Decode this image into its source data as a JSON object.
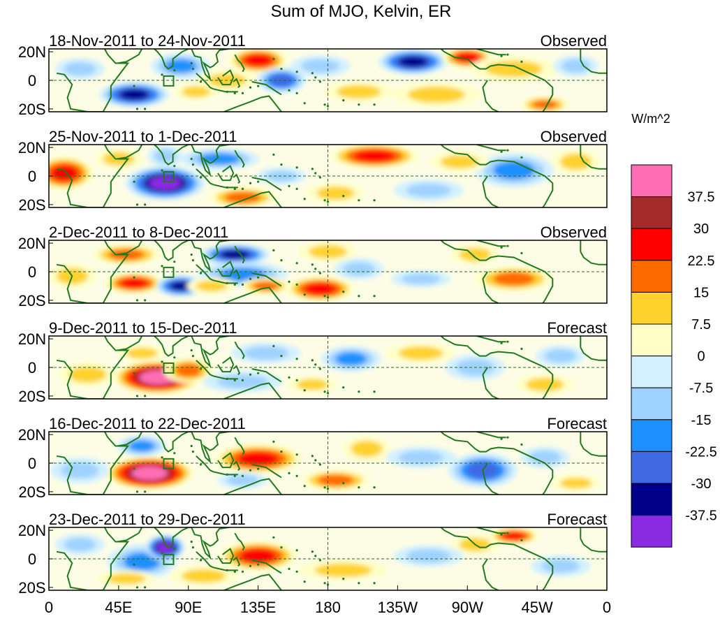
{
  "chart_data": {
    "type": "heatmap",
    "title": "Sum of MJO, Kelvin, ER",
    "units": "W/m^2",
    "x_ticks": [
      "0",
      "45E",
      "90E",
      "135E",
      "180",
      "135W",
      "90W",
      "45W",
      "0"
    ],
    "y_ticks": [
      "20N",
      "0",
      "20S"
    ],
    "colorbar": {
      "ticks": [
        "37.5",
        "30",
        "22.5",
        "15",
        "7.5",
        "0",
        "-7.5",
        "-15",
        "-22.5",
        "-30",
        "-37.5"
      ],
      "colors": [
        "#ff6eb4",
        "#a52a2a",
        "#ff0000",
        "#ff6a00",
        "#ffd22e",
        "#ffffc8",
        "#d2f0ff",
        "#a0d2ff",
        "#1e90ff",
        "#4169e1",
        "#00008b",
        "#8a2be2"
      ]
    },
    "panels": [
      {
        "period": "18-Nov-2011 to 24-Nov-2011",
        "status": "Observed",
        "anomalies": [
          {
            "lon": 20,
            "lat": 8,
            "rx": 10,
            "ry": 5,
            "value": -12
          },
          {
            "lon": 55,
            "lat": -10,
            "rx": 14,
            "ry": 6,
            "value": -35
          },
          {
            "lon": 85,
            "lat": 10,
            "rx": 12,
            "ry": 6,
            "value": -18
          },
          {
            "lon": 95,
            "lat": -8,
            "rx": 9,
            "ry": 4,
            "value": 10
          },
          {
            "lon": 135,
            "lat": 14,
            "rx": 12,
            "ry": 6,
            "value": 24
          },
          {
            "lon": 150,
            "lat": 0,
            "rx": 10,
            "ry": 6,
            "value": -30
          },
          {
            "lon": 115,
            "lat": 0,
            "rx": 12,
            "ry": 5,
            "value": 8
          },
          {
            "lon": 235,
            "lat": 13,
            "rx": 14,
            "ry": 6,
            "value": -36
          },
          {
            "lon": 270,
            "lat": 16,
            "rx": 10,
            "ry": 5,
            "value": 23
          },
          {
            "lon": 300,
            "lat": 8,
            "rx": 18,
            "ry": 6,
            "value": 14
          },
          {
            "lon": 340,
            "lat": 10,
            "rx": 9,
            "ry": 5,
            "value": -12
          },
          {
            "lon": 250,
            "lat": -10,
            "rx": 18,
            "ry": 6,
            "value": 8
          },
          {
            "lon": 320,
            "lat": -17,
            "rx": 10,
            "ry": 4,
            "value": 20
          },
          {
            "lon": 200,
            "lat": -8,
            "rx": 14,
            "ry": 5,
            "value": 9
          },
          {
            "lon": 175,
            "lat": 10,
            "rx": 12,
            "ry": 5,
            "value": -9
          }
        ]
      },
      {
        "period": "25-Nov-2011 to 1-Dec-2011",
        "status": "Observed",
        "anomalies": [
          {
            "lon": 10,
            "lat": 2,
            "rx": 12,
            "ry": 8,
            "value": 24
          },
          {
            "lon": 45,
            "lat": 12,
            "rx": 10,
            "ry": 5,
            "value": 10
          },
          {
            "lon": 75,
            "lat": -5,
            "rx": 16,
            "ry": 8,
            "value": -38
          },
          {
            "lon": 75,
            "lat": 14,
            "rx": 7,
            "ry": 5,
            "value": -15
          },
          {
            "lon": 110,
            "lat": 12,
            "rx": 16,
            "ry": 5,
            "value": -16
          },
          {
            "lon": 125,
            "lat": -15,
            "rx": 14,
            "ry": 5,
            "value": 20
          },
          {
            "lon": 150,
            "lat": 0,
            "rx": 10,
            "ry": 4,
            "value": -9
          },
          {
            "lon": 210,
            "lat": 14,
            "rx": 18,
            "ry": 6,
            "value": 24
          },
          {
            "lon": 185,
            "lat": -12,
            "rx": 12,
            "ry": 5,
            "value": 10
          },
          {
            "lon": 300,
            "lat": 4,
            "rx": 16,
            "ry": 8,
            "value": -16
          },
          {
            "lon": 340,
            "lat": 10,
            "rx": 10,
            "ry": 6,
            "value": 10
          },
          {
            "lon": 265,
            "lat": 10,
            "rx": 12,
            "ry": 5,
            "value": 8
          },
          {
            "lon": 245,
            "lat": -10,
            "rx": 14,
            "ry": 5,
            "value": -9
          }
        ]
      },
      {
        "period": "2-Dec-2011 to 8-Dec-2011",
        "status": "Observed",
        "anomalies": [
          {
            "lon": 50,
            "lat": 12,
            "rx": 14,
            "ry": 5,
            "value": 18
          },
          {
            "lon": 55,
            "lat": -8,
            "rx": 12,
            "ry": 5,
            "value": 23
          },
          {
            "lon": 85,
            "lat": -10,
            "rx": 10,
            "ry": 5,
            "value": -33
          },
          {
            "lon": 120,
            "lat": 12,
            "rx": 14,
            "ry": 5,
            "value": -33
          },
          {
            "lon": 125,
            "lat": -2,
            "rx": 18,
            "ry": 6,
            "value": -16
          },
          {
            "lon": 105,
            "lat": -10,
            "rx": 10,
            "ry": 4,
            "value": 10
          },
          {
            "lon": 140,
            "lat": -10,
            "rx": 10,
            "ry": 4,
            "value": 18
          },
          {
            "lon": 175,
            "lat": -12,
            "rx": 14,
            "ry": 6,
            "value": 24
          },
          {
            "lon": 180,
            "lat": 14,
            "rx": 12,
            "ry": 5,
            "value": 10
          },
          {
            "lon": 200,
            "lat": 2,
            "rx": 10,
            "ry": 5,
            "value": -9
          },
          {
            "lon": 300,
            "lat": -5,
            "rx": 16,
            "ry": 6,
            "value": 18
          },
          {
            "lon": 275,
            "lat": 12,
            "rx": 10,
            "ry": 5,
            "value": 10
          },
          {
            "lon": 15,
            "lat": -3,
            "rx": 10,
            "ry": 6,
            "value": 12
          },
          {
            "lon": 240,
            "lat": -5,
            "rx": 12,
            "ry": 4,
            "value": -8
          }
        ]
      },
      {
        "period": "9-Dec-2011 to 15-Dec-2011",
        "status": "Forecast",
        "anomalies": [
          {
            "lon": 70,
            "lat": -7,
            "rx": 18,
            "ry": 8,
            "value": 40
          },
          {
            "lon": 90,
            "lat": -2,
            "rx": 10,
            "ry": 6,
            "value": 22
          },
          {
            "lon": 25,
            "lat": -5,
            "rx": 12,
            "ry": 6,
            "value": 12
          },
          {
            "lon": 60,
            "lat": 10,
            "rx": 10,
            "ry": 4,
            "value": 10
          },
          {
            "lon": 140,
            "lat": 10,
            "rx": 14,
            "ry": 5,
            "value": -14
          },
          {
            "lon": 195,
            "lat": 6,
            "rx": 12,
            "ry": 6,
            "value": -20
          },
          {
            "lon": 125,
            "lat": -10,
            "rx": 16,
            "ry": 5,
            "value": -10
          },
          {
            "lon": 240,
            "lat": 10,
            "rx": 14,
            "ry": 5,
            "value": 12
          },
          {
            "lon": 275,
            "lat": 0,
            "rx": 12,
            "ry": 6,
            "value": -9
          },
          {
            "lon": 320,
            "lat": -12,
            "rx": 12,
            "ry": 5,
            "value": 10
          },
          {
            "lon": 330,
            "lat": 8,
            "rx": 10,
            "ry": 5,
            "value": -8
          },
          {
            "lon": 170,
            "lat": -12,
            "rx": 10,
            "ry": 4,
            "value": 8
          }
        ]
      },
      {
        "period": "16-Dec-2011 to 22-Dec-2011",
        "status": "Forecast",
        "anomalies": [
          {
            "lon": 65,
            "lat": -7,
            "rx": 18,
            "ry": 8,
            "value": 40
          },
          {
            "lon": 60,
            "lat": 12,
            "rx": 10,
            "ry": 5,
            "value": -18
          },
          {
            "lon": 135,
            "lat": 3,
            "rx": 18,
            "ry": 7,
            "value": 24
          },
          {
            "lon": 125,
            "lat": -12,
            "rx": 10,
            "ry": 4,
            "value": -10
          },
          {
            "lon": 185,
            "lat": -12,
            "rx": 14,
            "ry": 5,
            "value": 20
          },
          {
            "lon": 205,
            "lat": 10,
            "rx": 10,
            "ry": 6,
            "value": 12
          },
          {
            "lon": 280,
            "lat": -5,
            "rx": 14,
            "ry": 8,
            "value": -26
          },
          {
            "lon": 320,
            "lat": 4,
            "rx": 10,
            "ry": 5,
            "value": -10
          },
          {
            "lon": 20,
            "lat": -5,
            "rx": 12,
            "ry": 6,
            "value": -10
          },
          {
            "lon": 240,
            "lat": 4,
            "rx": 14,
            "ry": 5,
            "value": -8
          },
          {
            "lon": 340,
            "lat": -14,
            "rx": 10,
            "ry": 4,
            "value": 9
          }
        ]
      },
      {
        "period": "23-Dec-2011 to 29-Dec-2011",
        "status": "Forecast",
        "anomalies": [
          {
            "lon": 60,
            "lat": -2,
            "rx": 14,
            "ry": 8,
            "value": -18
          },
          {
            "lon": 75,
            "lat": 8,
            "rx": 8,
            "ry": 6,
            "value": -38
          },
          {
            "lon": 135,
            "lat": 2,
            "rx": 16,
            "ry": 7,
            "value": 25
          },
          {
            "lon": 100,
            "lat": -12,
            "rx": 14,
            "ry": 5,
            "value": 10
          },
          {
            "lon": 50,
            "lat": -14,
            "rx": 12,
            "ry": 4,
            "value": 12
          },
          {
            "lon": 190,
            "lat": -8,
            "rx": 18,
            "ry": 5,
            "value": 10
          },
          {
            "lon": 300,
            "lat": 16,
            "rx": 10,
            "ry": 4,
            "value": 23
          },
          {
            "lon": 275,
            "lat": 10,
            "rx": 10,
            "ry": 5,
            "value": 10
          },
          {
            "lon": 245,
            "lat": 2,
            "rx": 14,
            "ry": 5,
            "value": -9
          },
          {
            "lon": 330,
            "lat": -5,
            "rx": 12,
            "ry": 5,
            "value": -9
          },
          {
            "lon": 20,
            "lat": 10,
            "rx": 10,
            "ry": 5,
            "value": -10
          }
        ]
      }
    ]
  }
}
